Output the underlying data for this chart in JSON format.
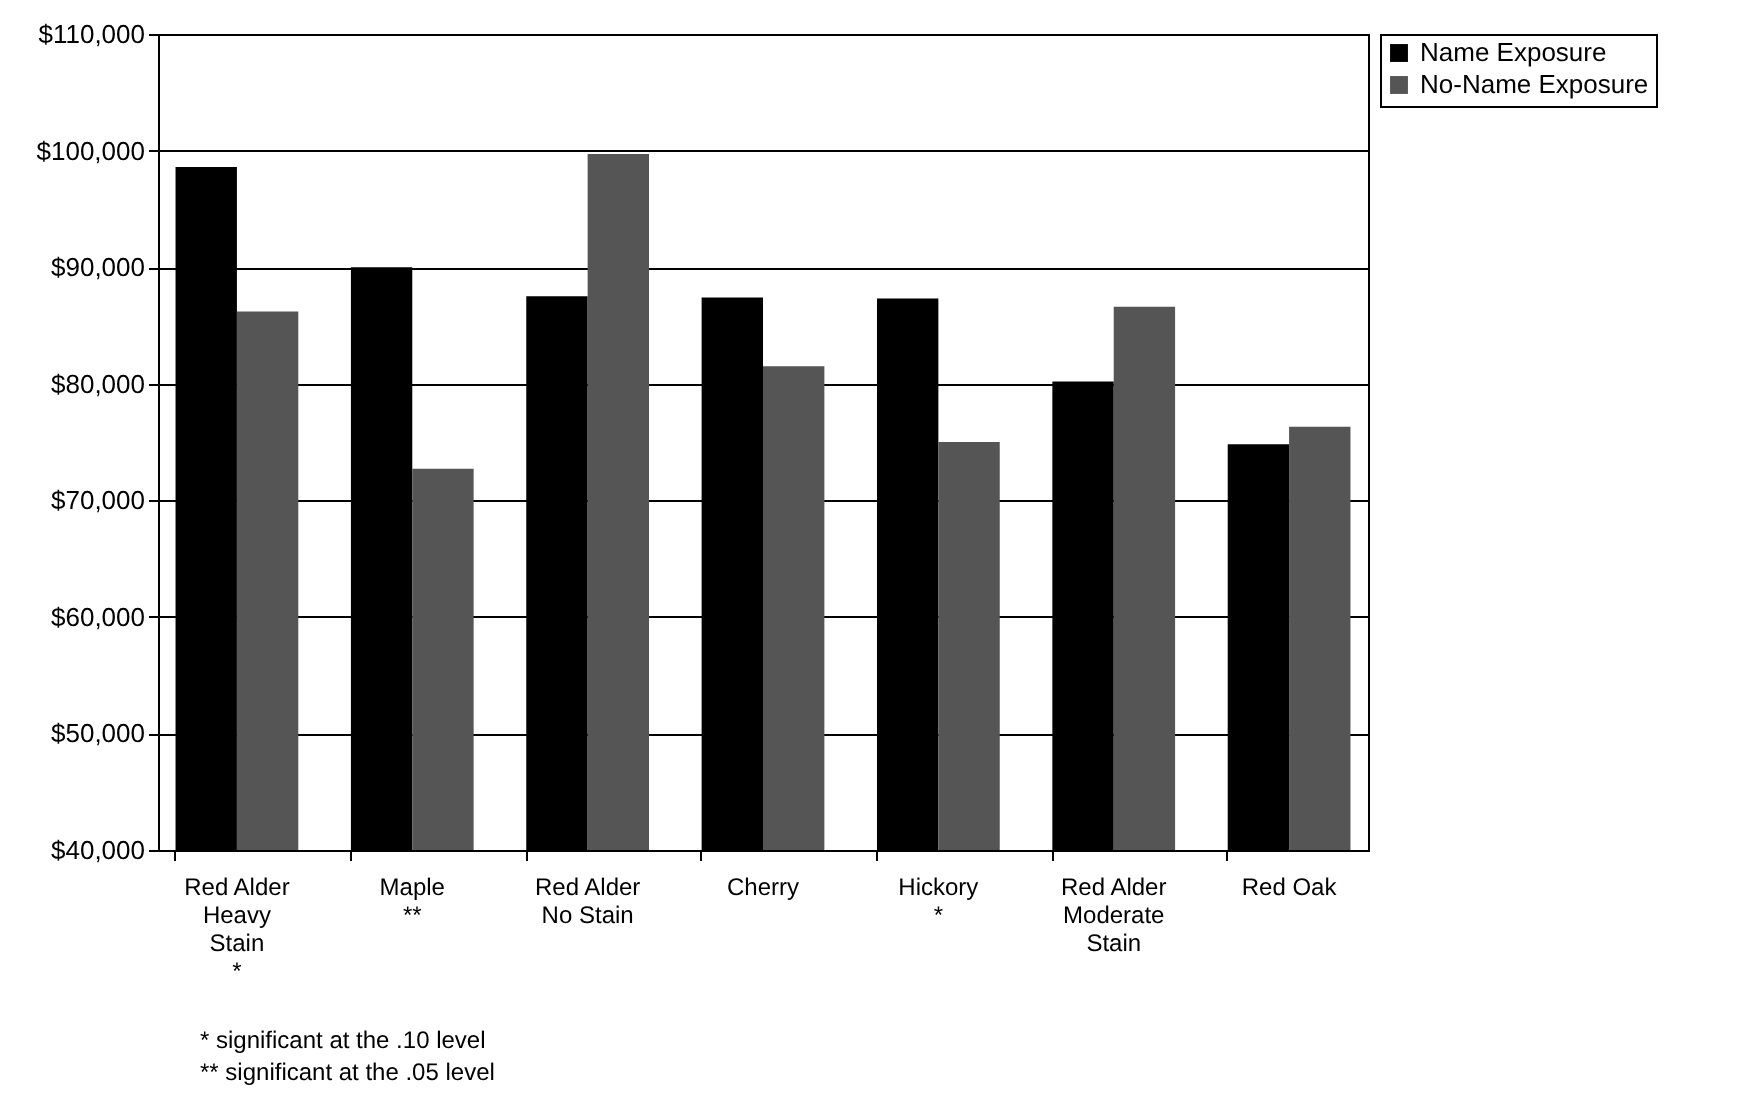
{
  "chart_data": {
    "type": "bar",
    "categories": [
      "Red Alder\nHeavy\nStain\n*",
      "Maple\n**",
      "Red Alder\nNo Stain",
      "Cherry",
      "Hickory\n*",
      "Red Alder\nModerate\nStain",
      "Red Oak"
    ],
    "series": [
      {
        "name": "Name Exposure",
        "color": "#000000",
        "values": [
          98600,
          90000,
          87500,
          87400,
          87300,
          80200,
          74800
        ]
      },
      {
        "name": "No-Name Exposure",
        "color": "#555555",
        "values": [
          86200,
          72700,
          99700,
          81500,
          75000,
          86600,
          76300
        ]
      }
    ],
    "ylim": [
      40000,
      110000
    ],
    "yticks": [
      {
        "value": 40000,
        "label": "$40,000"
      },
      {
        "value": 50000,
        "label": "$50,000"
      },
      {
        "value": 60000,
        "label": "$60,000"
      },
      {
        "value": 70000,
        "label": "$70,000"
      },
      {
        "value": 80000,
        "label": "$80,000"
      },
      {
        "value": 90000,
        "label": "$90,000"
      },
      {
        "value": 100000,
        "label": "$100,000"
      },
      {
        "value": 110000,
        "label": "$110,000"
      }
    ],
    "grid": "y",
    "legend": "right",
    "annotations": [
      "* significant at the .10 level",
      "** significant at the .05 level"
    ]
  }
}
